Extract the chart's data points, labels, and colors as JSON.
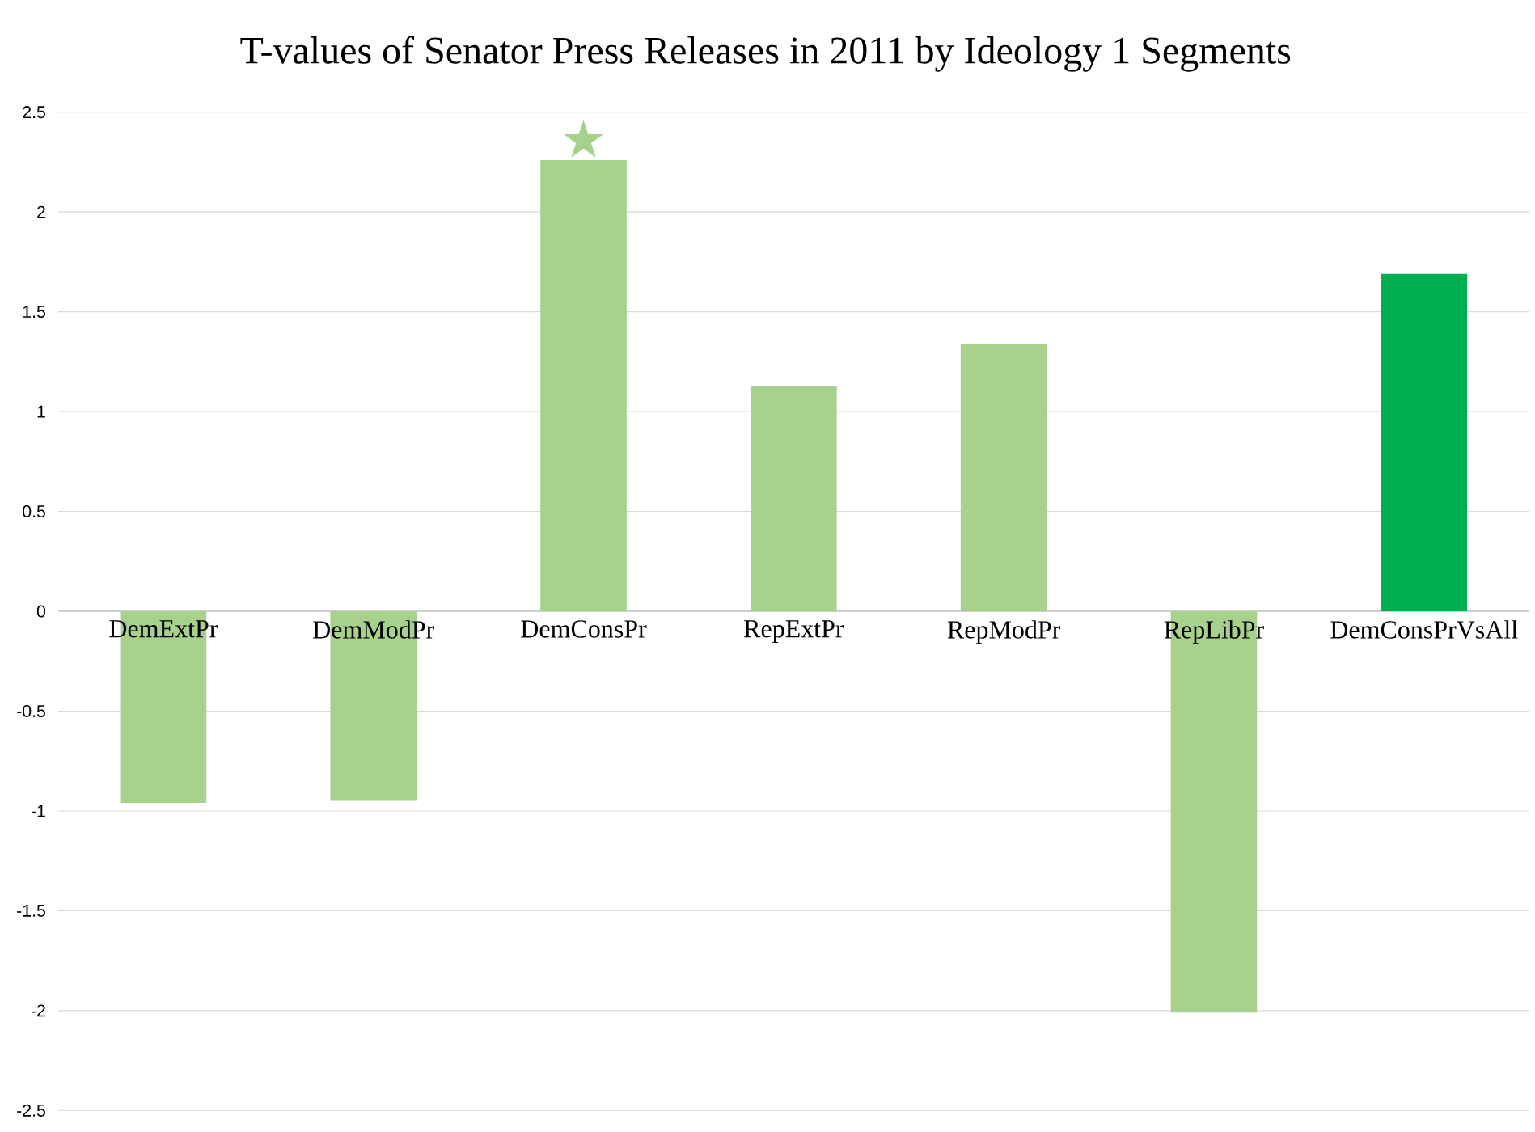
{
  "chart_data": {
    "type": "bar",
    "title": "T-values of Senator Press Releases in 2011 by Ideology 1 Segments",
    "categories": [
      "DemExtPr",
      "DemModPr",
      "DemConsPr",
      "RepExtPr",
      "RepModPr",
      "RepLibPr",
      "DemConsPrVsAll"
    ],
    "values": [
      -0.96,
      -0.95,
      2.26,
      1.13,
      1.34,
      -2.01,
      1.69
    ],
    "colors": [
      "#a9d18e",
      "#a9d18e",
      "#a9d18e",
      "#a9d18e",
      "#a9d18e",
      "#a9d18e",
      "#00b050"
    ],
    "ylim": [
      -2.5,
      2.5
    ],
    "yticks": [
      -2.5,
      -2,
      -1.5,
      -1,
      -0.5,
      0,
      0.5,
      1,
      1.5,
      2,
      2.5
    ],
    "annotations": [
      "★"
    ],
    "grid": "y"
  }
}
